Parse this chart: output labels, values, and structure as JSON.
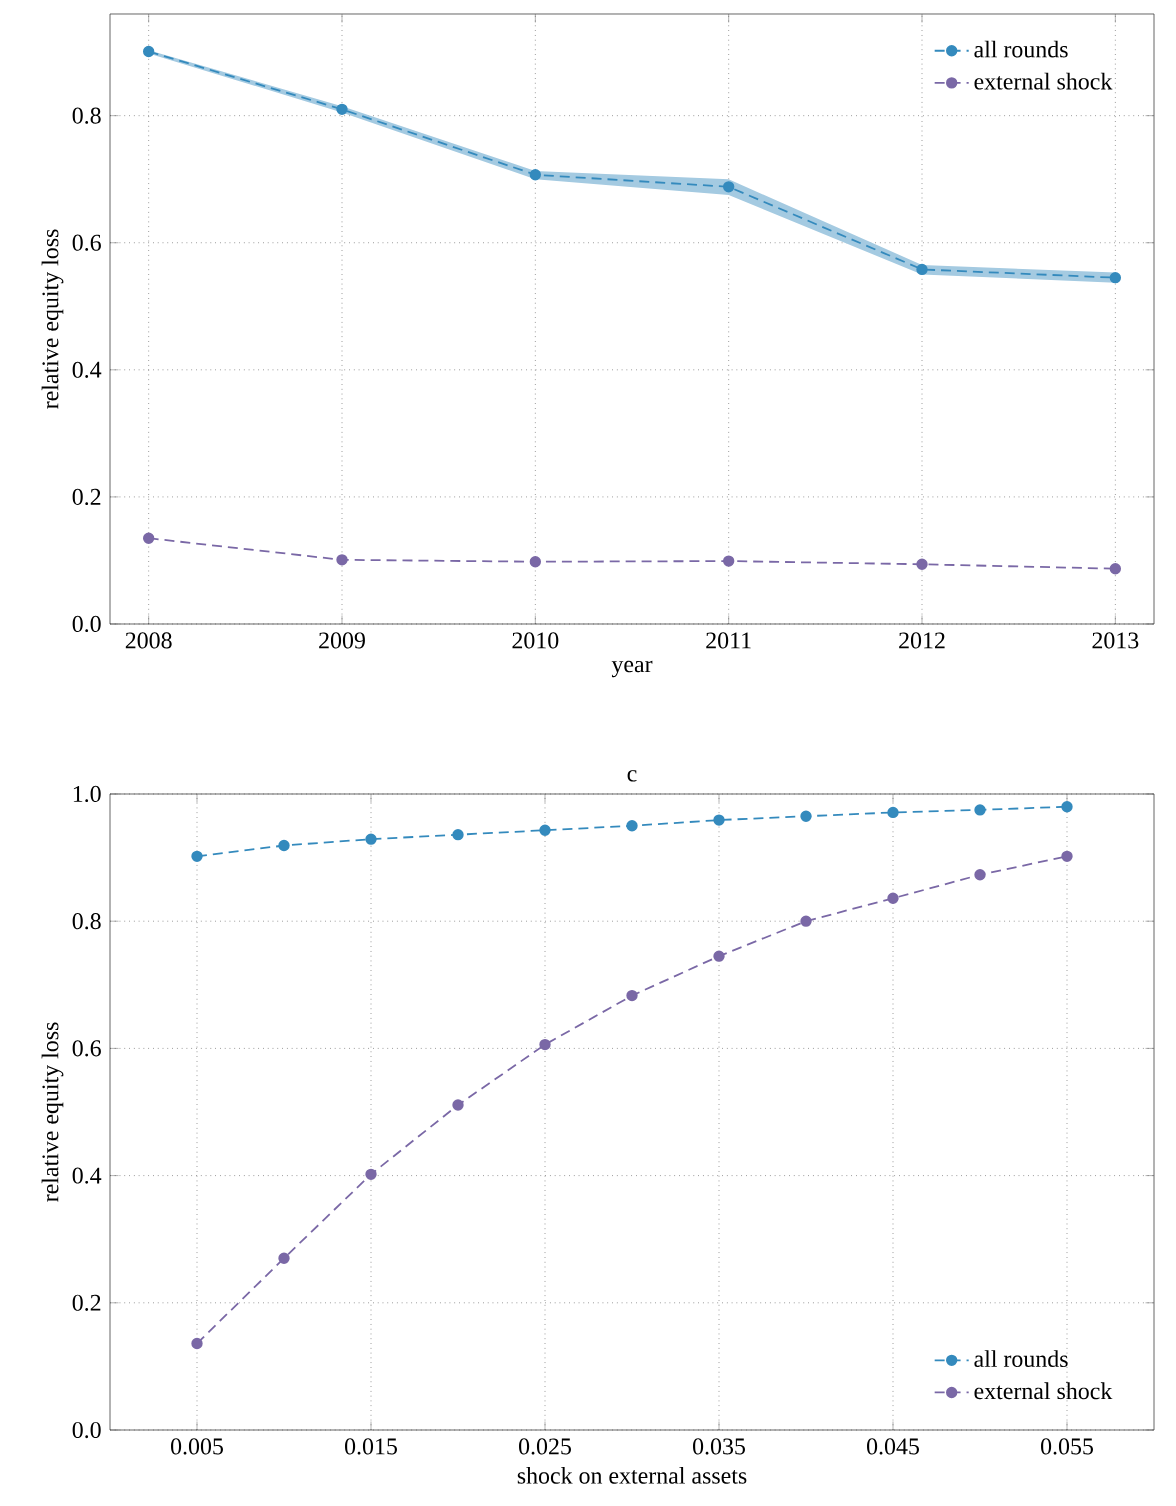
{
  "chart_data": [
    {
      "type": "line",
      "xlabel": "year",
      "ylabel": "relative equity loss",
      "xlim": [
        2007.8,
        2013.2
      ],
      "ylim": [
        0,
        0.96
      ],
      "xticks": [
        2008,
        2009,
        2010,
        2011,
        2012,
        2013
      ],
      "yticks": [
        {
          "value": 0,
          "label": "0.0"
        },
        {
          "value": 0.2,
          "label": "0.2"
        },
        {
          "value": 0.4,
          "label": "0.4"
        },
        {
          "value": 0.6,
          "label": "0.6"
        },
        {
          "value": 0.8,
          "label": "0.8"
        }
      ],
      "x": [
        2008,
        2009,
        2010,
        2011,
        2012,
        2013
      ],
      "series": [
        {
          "name": "all rounds",
          "color": "#348abd",
          "values": [
            0.901,
            0.81,
            0.707,
            0.688,
            0.558,
            0.545
          ],
          "lower": [
            0.898,
            0.805,
            0.7,
            0.675,
            0.55,
            0.537
          ],
          "upper": [
            0.903,
            0.815,
            0.713,
            0.7,
            0.565,
            0.553
          ]
        },
        {
          "name": "external shock",
          "color": "#7a68a6",
          "values": [
            0.135,
            0.101,
            0.098,
            0.099,
            0.094,
            0.087
          ]
        }
      ],
      "grid": true,
      "legend": "top right",
      "marker": "circle",
      "line_style": "dashed"
    },
    {
      "type": "line",
      "title": "c",
      "xlabel": "shock on external assets",
      "ylabel": "relative equity loss",
      "xlim": [
        0,
        0.06
      ],
      "ylim": [
        0,
        1.0
      ],
      "xticks": [
        0.005,
        0.015,
        0.025,
        0.035,
        0.045,
        0.055
      ],
      "yticks": [
        {
          "value": 0,
          "label": "0.0"
        },
        {
          "value": 0.2,
          "label": "0.2"
        },
        {
          "value": 0.4,
          "label": "0.4"
        },
        {
          "value": 0.6,
          "label": "0.6"
        },
        {
          "value": 0.8,
          "label": "0.8"
        },
        {
          "value": 1.0,
          "label": "1.0"
        }
      ],
      "x": [
        0.005,
        0.01,
        0.015,
        0.02,
        0.025,
        0.03,
        0.035,
        0.04,
        0.045,
        0.05,
        0.055
      ],
      "series": [
        {
          "name": "all rounds",
          "color": "#348abd",
          "values": [
            0.902,
            0.919,
            0.929,
            0.936,
            0.943,
            0.95,
            0.959,
            0.965,
            0.971,
            0.975,
            0.98
          ]
        },
        {
          "name": "external shock",
          "color": "#7a68a6",
          "values": [
            0.136,
            0.27,
            0.402,
            0.511,
            0.606,
            0.683,
            0.745,
            0.8,
            0.836,
            0.873,
            0.902
          ]
        }
      ],
      "grid": true,
      "legend": "bottom right",
      "marker": "circle",
      "line_style": "dashed"
    }
  ]
}
